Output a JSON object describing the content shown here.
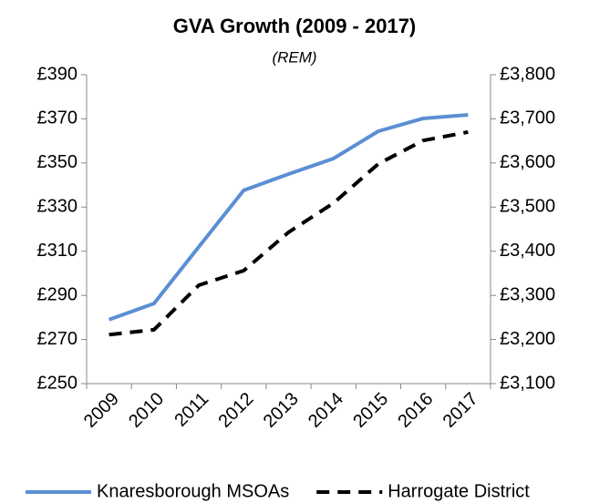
{
  "chart_data": {
    "type": "line",
    "title": "GVA Growth (2009 - 2017)",
    "subtitle": "(REM)",
    "categories": [
      "2009",
      "2010",
      "2011",
      "2012",
      "2013",
      "2014",
      "2015",
      "2016",
      "2017"
    ],
    "series": [
      {
        "name": "Knaresborough MSOAs",
        "color": "#5b8fd4",
        "values": [
          279,
          286.3,
          312,
          337.6,
          345,
          352,
          364.4,
          370.2,
          371.8
        ]
      },
      {
        "name": "Harrogate District",
        "color": "#000000",
        "axis": "y2",
        "dashed": true,
        "values": [
          3211,
          3222,
          3323,
          3356,
          3443,
          3509,
          3598,
          3651,
          3670
        ]
      }
    ],
    "ylim": [
      250,
      390
    ],
    "yticks": [
      {
        "value": 250,
        "label": "£250"
      },
      {
        "value": 270,
        "label": "£270"
      },
      {
        "value": 290,
        "label": "£290"
      },
      {
        "value": 310,
        "label": "£310"
      },
      {
        "value": 330,
        "label": "£330"
      },
      {
        "value": 350,
        "label": "£350"
      },
      {
        "value": 370,
        "label": "£370"
      },
      {
        "value": 390,
        "label": "£390"
      }
    ],
    "y2lim": [
      3100,
      3800
    ],
    "y2ticks": [
      {
        "value": 3100,
        "label": "£3,100"
      },
      {
        "value": 3200,
        "label": "£3,200"
      },
      {
        "value": 3300,
        "label": "£3,300"
      },
      {
        "value": 3400,
        "label": "£3,400"
      },
      {
        "value": 3500,
        "label": "£3,500"
      },
      {
        "value": 3600,
        "label": "£3,600"
      },
      {
        "value": 3700,
        "label": "£3,700"
      },
      {
        "value": 3800,
        "label": "£3,800"
      }
    ],
    "grid": false,
    "legend": "bottom"
  }
}
